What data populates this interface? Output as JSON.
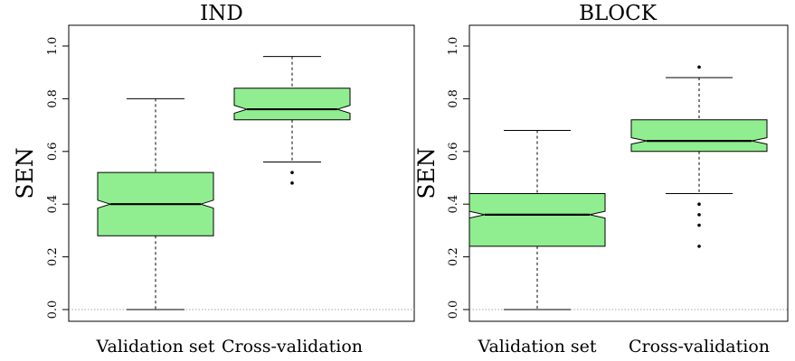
{
  "chart_data": [
    {
      "type": "boxplot",
      "title": "IND",
      "ylabel": "SEN",
      "xlabel": "",
      "ylim": [
        0.0,
        1.0
      ],
      "yticks": [
        "0.0",
        "0.2",
        "0.4",
        "0.6",
        "0.8",
        "1.0"
      ],
      "reference_line": 0.0,
      "categories": [
        "Validation set",
        "Cross-validation"
      ],
      "boxes": [
        {
          "name": "Validation set",
          "whisker_low": 0.0,
          "q1": 0.28,
          "median": 0.4,
          "q3": 0.52,
          "whisker_high": 0.8,
          "notch_low": 0.385,
          "notch_high": 0.415,
          "outliers": []
        },
        {
          "name": "Cross-validation",
          "whisker_low": 0.56,
          "q1": 0.72,
          "median": 0.76,
          "q3": 0.84,
          "whisker_high": 0.96,
          "notch_low": 0.745,
          "notch_high": 0.775,
          "outliers": [
            0.48,
            0.52
          ]
        }
      ],
      "fill_color": "#90ee90"
    },
    {
      "type": "boxplot",
      "title": "BLOCK",
      "ylabel": "SEN",
      "xlabel": "",
      "ylim": [
        0.0,
        1.0
      ],
      "yticks": [
        "0.0",
        "0.2",
        "0.4",
        "0.6",
        "0.8",
        "1.0"
      ],
      "reference_line": 0.0,
      "categories": [
        "Validation set",
        "Cross-validation"
      ],
      "boxes": [
        {
          "name": "Validation set",
          "whisker_low": 0.0,
          "q1": 0.24,
          "median": 0.36,
          "q3": 0.44,
          "whisker_high": 0.68,
          "notch_low": 0.347,
          "notch_high": 0.373,
          "outliers": []
        },
        {
          "name": "Cross-validation",
          "whisker_low": 0.44,
          "q1": 0.6,
          "median": 0.64,
          "q3": 0.72,
          "whisker_high": 0.88,
          "notch_low": 0.628,
          "notch_high": 0.652,
          "outliers": [
            0.24,
            0.32,
            0.36,
            0.4,
            0.92
          ]
        }
      ],
      "fill_color": "#90ee90"
    }
  ]
}
